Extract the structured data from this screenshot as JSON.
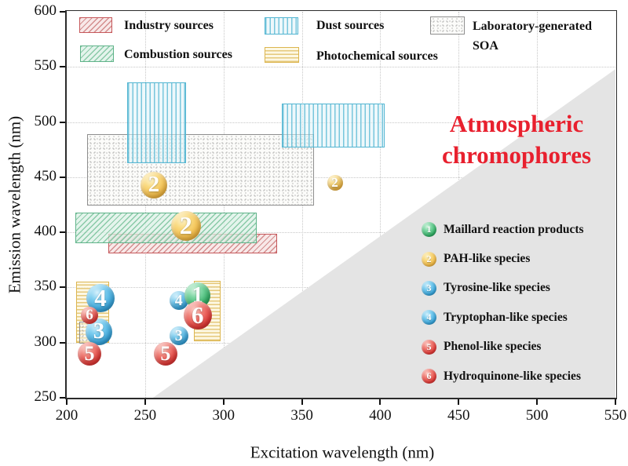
{
  "chart_data": {
    "type": "scatter",
    "xlabel": "Excitation wavelength (nm)",
    "ylabel": "Emission wavelength (nm)",
    "xlim": [
      200,
      550
    ],
    "ylim": [
      250,
      600
    ],
    "xticks": [
      200,
      250,
      300,
      350,
      400,
      450,
      500,
      550
    ],
    "yticks": [
      250,
      300,
      350,
      400,
      450,
      500,
      550,
      600
    ],
    "grid": "dotted",
    "annotation": {
      "lines": [
        "Atmospheric",
        "chromophores"
      ],
      "color": "#e8202e"
    },
    "masked_region": {
      "points": [
        [
          255,
          250
        ],
        [
          550,
          548
        ],
        [
          550,
          250
        ]
      ],
      "color": "#e4e4e4"
    },
    "regions": [
      {
        "name": "soa-large",
        "source": "Laboratory-generated SOA",
        "style": "soa",
        "ex": [
          213,
          357.5
        ],
        "em": [
          424,
          489
        ]
      },
      {
        "name": "dust-a",
        "source": "Dust sources",
        "style": "dust",
        "ex": [
          238.5,
          276
        ],
        "em": [
          463,
          536
        ]
      },
      {
        "name": "dust-b",
        "source": "Dust sources",
        "style": "dust",
        "ex": [
          337,
          403
        ],
        "em": [
          477,
          517
        ]
      },
      {
        "name": "industry",
        "source": "Industry sources",
        "style": "industry",
        "ex": [
          226.5,
          334
        ],
        "em": [
          381,
          399
        ]
      },
      {
        "name": "combustion",
        "source": "Combustion sources",
        "style": "combustion",
        "ex": [
          205.5,
          321
        ],
        "em": [
          390,
          418
        ]
      },
      {
        "name": "photochemical-a",
        "source": "Photochemical sources",
        "style": "photochemical",
        "ex": [
          206,
          227
        ],
        "em": [
          300,
          355
        ]
      },
      {
        "name": "photochemical-b",
        "source": "Photochemical sources",
        "style": "photochemical",
        "ex": [
          281,
          298
        ],
        "em": [
          301,
          356
        ]
      },
      {
        "name": "soa-small",
        "source": "Laboratory-generated SOA",
        "style": "soa",
        "translucent": true,
        "ex": [
          208,
          223
        ],
        "em": [
          299,
          319
        ]
      }
    ],
    "points": [
      {
        "name": "pah-on-soa",
        "n": "2",
        "species": "PAH-like species",
        "color": "yellow",
        "ex": 255.5,
        "em": 443,
        "r": 17
      },
      {
        "name": "pah-on-combustion",
        "n": "2",
        "species": "PAH-like species",
        "color": "yellow",
        "ex": 276,
        "em": 406,
        "r": 19
      },
      {
        "name": "pah-small-right",
        "n": "2",
        "species": "PAH-like species",
        "color": "yellow",
        "ex": 371,
        "em": 445,
        "r": 10
      },
      {
        "name": "tryptophan-left",
        "n": "4",
        "species": "Tryptophan-like species",
        "color": "blue",
        "ex": 221.5,
        "em": 340,
        "r": 18
      },
      {
        "name": "tyrosine-left",
        "n": "3",
        "species": "Tyrosine-like species",
        "color": "blue",
        "ex": 220.5,
        "em": 310,
        "r": 17
      },
      {
        "name": "hydroquinone-left",
        "n": "6",
        "species": "Hydroquinone-like species",
        "color": "red",
        "ex": 214.5,
        "em": 325,
        "r": 11
      },
      {
        "name": "phenol-left",
        "n": "5",
        "species": "Phenol-like species",
        "color": "red",
        "ex": 214.5,
        "em": 290,
        "r": 15
      },
      {
        "name": "tryptophan-right",
        "n": "4",
        "species": "Tryptophan-like species",
        "color": "blue",
        "ex": 271.5,
        "em": 338,
        "r": 12
      },
      {
        "name": "maillard-right",
        "n": "1",
        "species": "Maillard reaction products",
        "color": "green",
        "ex": 283.5,
        "em": 342.5,
        "r": 16.5
      },
      {
        "name": "hydroquinone-right",
        "n": "6",
        "species": "Hydroquinone-like species",
        "color": "red",
        "ex": 283.5,
        "em": 325,
        "r": 18
      },
      {
        "name": "tyrosine-right",
        "n": "3",
        "species": "Tyrosine-like species",
        "color": "blue",
        "ex": 271.5,
        "em": 306,
        "r": 12
      },
      {
        "name": "phenol-right",
        "n": "5",
        "species": "Phenol-like species",
        "color": "red",
        "ex": 263,
        "em": 290,
        "r": 15
      }
    ],
    "legend_sources": [
      {
        "label": "Industry sources",
        "style": "industry"
      },
      {
        "label": "Combustion sources",
        "style": "combustion"
      },
      {
        "label": "Dust sources",
        "style": "dust"
      },
      {
        "label": "Photochemical sources",
        "style": "photochemical"
      },
      {
        "label": "Laboratory-generated SOA",
        "label_lines": [
          "Laboratory-generated",
          "SOA"
        ],
        "style": "soa"
      }
    ],
    "legend_species": [
      {
        "n": "1",
        "label": "Maillard reaction products",
        "color": "green"
      },
      {
        "n": "2",
        "label": "PAH-like species",
        "color": "yellow"
      },
      {
        "n": "3",
        "label": "Tyrosine-like species",
        "color": "blue"
      },
      {
        "n": "4",
        "label": "Tryptophan-like species",
        "color": "blue"
      },
      {
        "n": "5",
        "label": "Phenol-like species",
        "color": "red"
      },
      {
        "n": "6",
        "label": "Hydroquinone-like species",
        "color": "red"
      }
    ],
    "colors": {
      "industry_border": "#c6585b",
      "combustion_border": "#5fb389",
      "dust_border": "#54b6d2",
      "photochemical_border": "#dcb54e",
      "soa_border": "#8e8e8e",
      "masked_triangle": "#e4e4e4",
      "annotation_red": "#e8202e",
      "bubble_green": "#2fae62",
      "bubble_yellow": "#f0b740",
      "bubble_blue": "#36a3da",
      "bubble_red": "#e23936"
    }
  }
}
